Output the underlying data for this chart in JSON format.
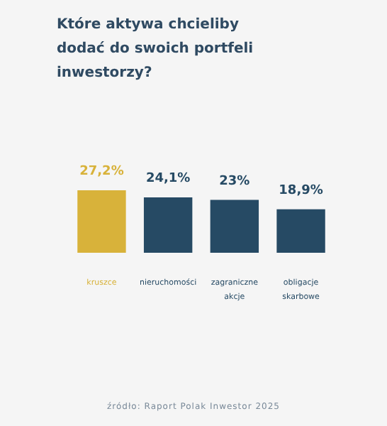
{
  "chart_data": {
    "type": "bar",
    "title": "Które aktywa chcieliby dodać do swoich portfeli inwestorzy?",
    "categories": [
      "kruszce",
      "nieruchomości",
      "zagraniczne akcje",
      "obligacje skarbowe"
    ],
    "values": [
      27.2,
      24.1,
      23,
      18.9
    ],
    "value_labels": [
      "27,2%",
      "24,1%",
      "23%",
      "18,9%"
    ],
    "colors": [
      "#d8b23a",
      "#264a64",
      "#264a64",
      "#264a64"
    ],
    "annotations": [
      "źródło: Raport Polak Inwestor 2025"
    ]
  }
}
